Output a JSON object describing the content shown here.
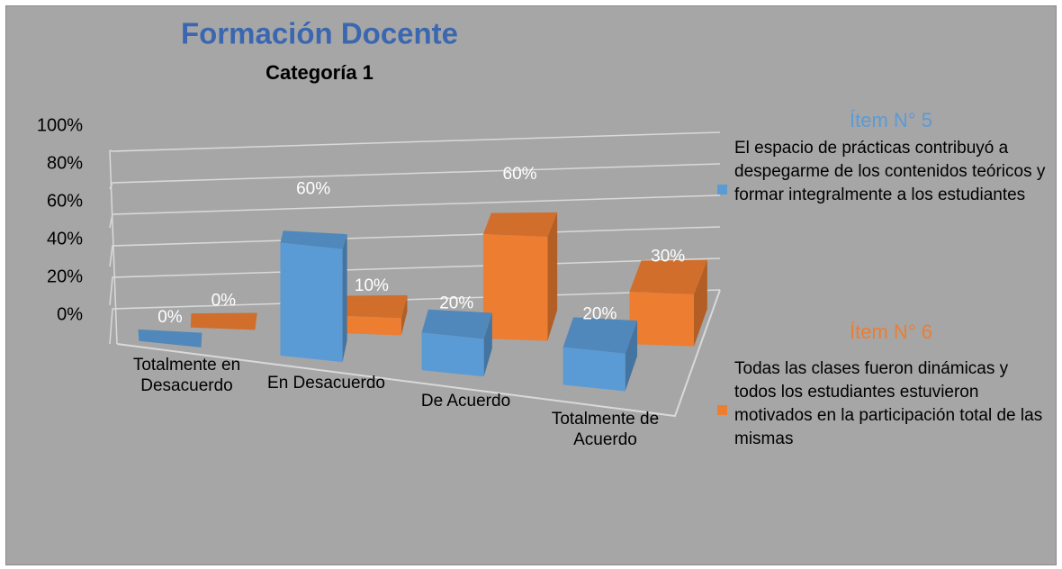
{
  "chart_data": {
    "type": "bar3d",
    "title": "Formación Docente",
    "subtitle": "Categoría 1",
    "categories": [
      "Totalmente en Desacuerdo",
      "En Desacuerdo",
      "De Acuerdo",
      "Totalmente de Acuerdo"
    ],
    "series": [
      {
        "name": "Ítem N° 5",
        "color": "#5b9bd5",
        "values": [
          0,
          60,
          20,
          20
        ],
        "value_labels": [
          "0%",
          "60%",
          "20%",
          "20%"
        ],
        "description": "El espacio de prácticas contribuyó a despegarme de los contenidos teóricos y formar integralmente a los estudiantes"
      },
      {
        "name": "Ítem N° 6",
        "color": "#ed7d31",
        "values": [
          0,
          10,
          60,
          30
        ],
        "value_labels": [
          "0%",
          "10%",
          "60%",
          "30%"
        ],
        "description": "Todas las clases fueron dinámicas y todos los estudiantes estuvieron motivados en la participación total de las mismas"
      }
    ],
    "ylim": [
      0,
      100
    ],
    "yticks": [
      {
        "value": 0,
        "label": "0%"
      },
      {
        "value": 20,
        "label": "20%"
      },
      {
        "value": 40,
        "label": "40%"
      },
      {
        "value": 60,
        "label": "60%"
      },
      {
        "value": 80,
        "label": "80%"
      },
      {
        "value": 100,
        "label": "100%"
      }
    ],
    "grid": true
  }
}
